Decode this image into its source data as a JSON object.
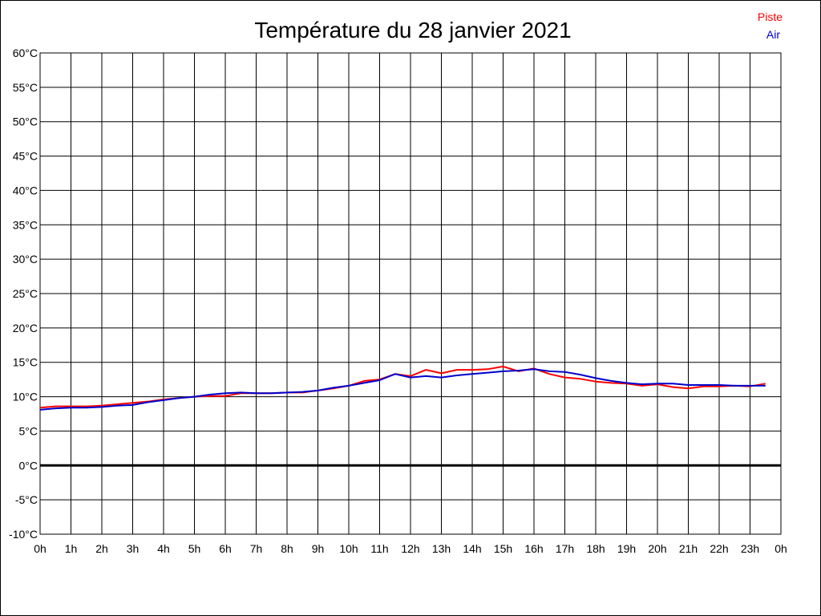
{
  "chart_data": {
    "type": "line",
    "title": "Température du 28 janvier 2021",
    "xlabel": "",
    "ylabel": "",
    "ylim": [
      -10,
      60
    ],
    "yticks": [
      {
        "value": 60,
        "label": "60°C"
      },
      {
        "value": 55,
        "label": "55°C"
      },
      {
        "value": 50,
        "label": "50°C"
      },
      {
        "value": 45,
        "label": "45°C"
      },
      {
        "value": 40,
        "label": "40°C"
      },
      {
        "value": 35,
        "label": "35°C"
      },
      {
        "value": 30,
        "label": "30°C"
      },
      {
        "value": 25,
        "label": "25°C"
      },
      {
        "value": 20,
        "label": "20°C"
      },
      {
        "value": 15,
        "label": "15°C"
      },
      {
        "value": 10,
        "label": "10°C"
      },
      {
        "value": 5,
        "label": "5°C"
      },
      {
        "value": 0,
        "label": "0°C"
      },
      {
        "value": -5,
        "label": "-5°C"
      },
      {
        "value": -10,
        "label": "-10°C"
      }
    ],
    "xticks": [
      "0h",
      "1h",
      "2h",
      "3h",
      "4h",
      "5h",
      "6h",
      "7h",
      "8h",
      "9h",
      "10h",
      "11h",
      "12h",
      "13h",
      "14h",
      "15h",
      "16h",
      "17h",
      "18h",
      "19h",
      "20h",
      "21h",
      "22h",
      "23h",
      "0h"
    ],
    "xlim": [
      0,
      24
    ],
    "grid": true,
    "zero_line": true,
    "legend_position": "top-right",
    "series": [
      {
        "name": "Piste",
        "color": "#ff0000",
        "x": [
          0,
          0.5,
          1,
          1.5,
          2,
          2.5,
          3,
          3.5,
          4,
          4.5,
          5,
          5.5,
          6,
          6.5,
          7,
          7.5,
          8,
          8.5,
          9,
          9.5,
          10,
          10.5,
          11,
          11.5,
          12,
          12.5,
          13,
          13.5,
          14,
          14.5,
          15,
          15.5,
          16,
          16.5,
          17,
          17.5,
          18,
          18.5,
          19,
          19.5,
          20,
          20.5,
          21,
          21.5,
          22,
          22.5,
          23,
          23.5
        ],
        "values": [
          8.4,
          8.6,
          8.6,
          8.6,
          8.7,
          8.9,
          9.1,
          9.3,
          9.6,
          9.8,
          10.0,
          10.1,
          10.1,
          10.5,
          10.5,
          10.5,
          10.6,
          10.6,
          10.9,
          11.2,
          11.6,
          12.3,
          12.5,
          13.3,
          13.0,
          13.9,
          13.4,
          13.9,
          13.9,
          14.0,
          14.4,
          13.7,
          14.1,
          13.3,
          12.8,
          12.6,
          12.2,
          12.0,
          11.9,
          11.6,
          11.8,
          11.4,
          11.2,
          11.5,
          11.5,
          11.6,
          11.5,
          11.9
        ]
      },
      {
        "name": "Air",
        "color": "#0000cc",
        "x": [
          0,
          0.5,
          1,
          1.5,
          2,
          2.5,
          3,
          3.5,
          4,
          4.5,
          5,
          5.5,
          6,
          6.5,
          7,
          7.5,
          8,
          8.5,
          9,
          9.5,
          10,
          10.5,
          11,
          11.5,
          12,
          12.5,
          13,
          13.5,
          14,
          14.5,
          15,
          15.5,
          16,
          16.5,
          17,
          17.5,
          18,
          18.5,
          19,
          19.5,
          20,
          20.5,
          21,
          21.5,
          22,
          22.5,
          23,
          23.5
        ],
        "values": [
          8.1,
          8.3,
          8.4,
          8.4,
          8.5,
          8.7,
          8.8,
          9.2,
          9.5,
          9.8,
          10.0,
          10.3,
          10.5,
          10.6,
          10.5,
          10.5,
          10.6,
          10.7,
          10.9,
          11.3,
          11.6,
          12.0,
          12.4,
          13.3,
          12.8,
          13.0,
          12.8,
          13.1,
          13.3,
          13.5,
          13.7,
          13.8,
          14.0,
          13.7,
          13.6,
          13.2,
          12.7,
          12.3,
          12.0,
          11.8,
          11.9,
          11.9,
          11.7,
          11.7,
          11.7,
          11.6,
          11.6,
          11.6
        ]
      }
    ]
  }
}
